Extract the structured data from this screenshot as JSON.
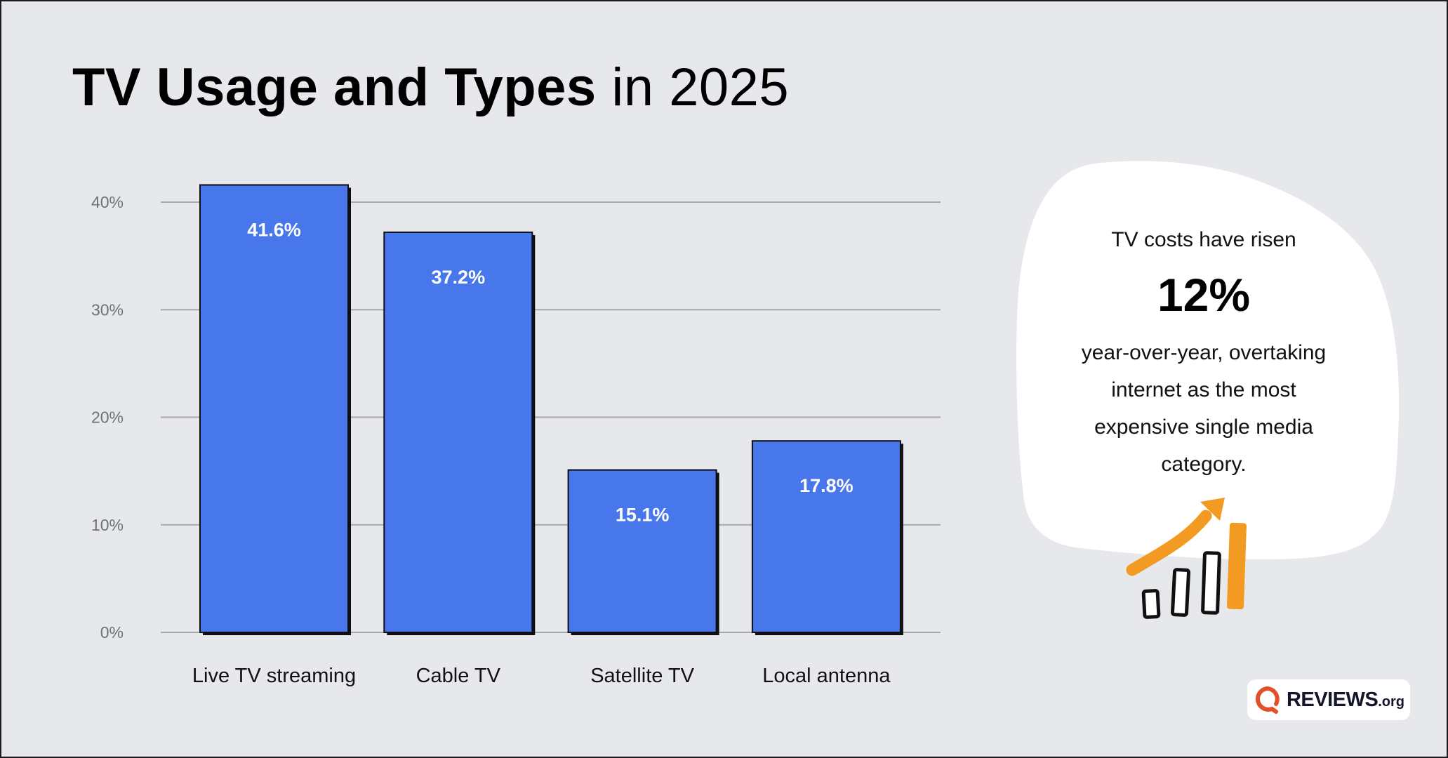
{
  "title": {
    "bold": "TV Usage and Types",
    "light": "in 2025"
  },
  "colors": {
    "background": "#e7e8ec",
    "bar": "#4877ec",
    "bar_shadow": "#0e0e14",
    "gridline": "#a8a9ad",
    "accent_orange": "#f39a22",
    "logo_red": "#e2502a",
    "logo_text": "#14152b"
  },
  "chart_data": {
    "type": "bar",
    "title": "TV Usage and Types in 2025",
    "xlabel": "",
    "ylabel": "",
    "categories": [
      "Live TV streaming",
      "Cable TV",
      "Satellite TV",
      "Local antenna"
    ],
    "values": [
      41.6,
      37.2,
      15.1,
      17.8
    ],
    "value_labels": [
      "41.6%",
      "37.2%",
      "15.1%",
      "17.8%"
    ],
    "ylim": [
      0,
      40
    ],
    "yticks": [
      0,
      10,
      20,
      30,
      40
    ],
    "ytick_labels": [
      "0%",
      "10%",
      "20%",
      "30%",
      "40%"
    ],
    "grid": true,
    "legend": "none"
  },
  "callout": {
    "lead": "TV costs have risen",
    "stat": "12%",
    "body_lines": [
      "year-over-year, overtaking",
      "internet as the most",
      "expensive single media",
      "category."
    ],
    "icon": "rising-bar-chart-with-arrow-icon"
  },
  "logo": {
    "icon": "reviews-q-icon",
    "word": "REVIEWS",
    "tld": ".org"
  }
}
